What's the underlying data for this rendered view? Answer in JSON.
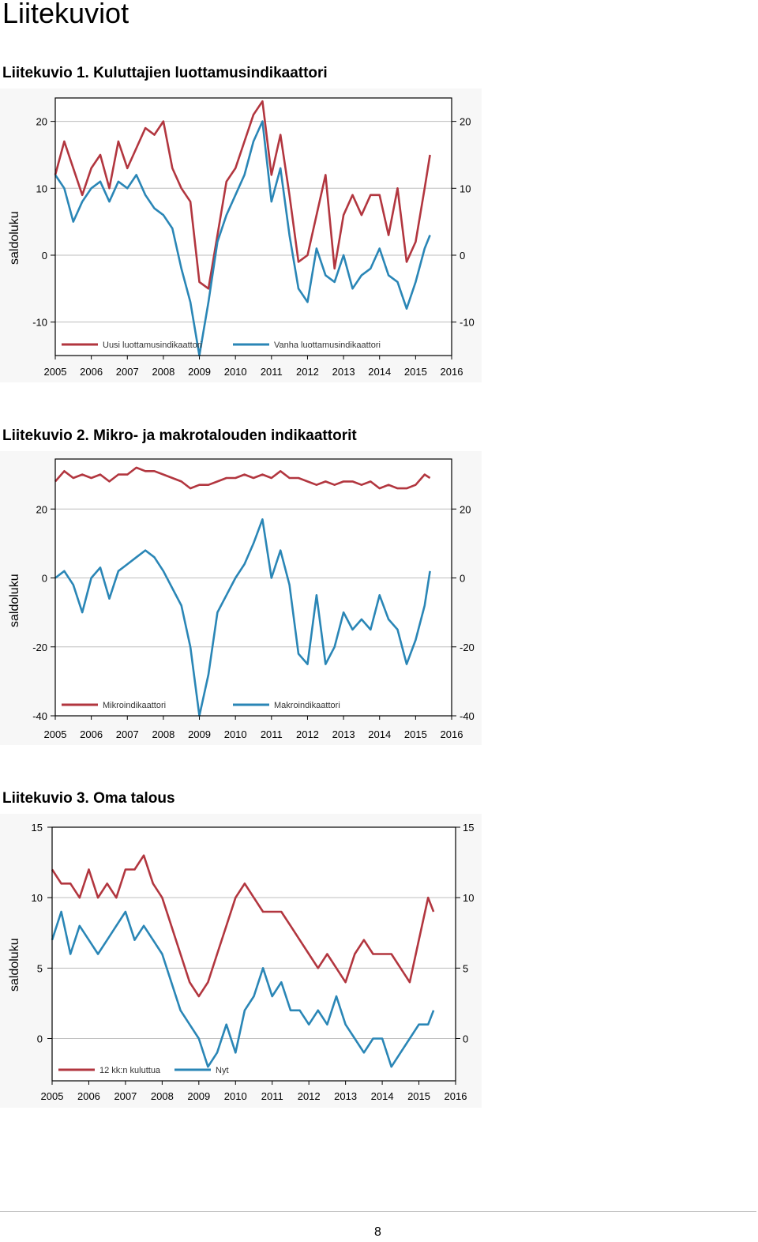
{
  "page": {
    "heading": "Liitekuviot",
    "page_number": "8"
  },
  "colors": {
    "red": "#b2363f",
    "blue": "#2a86b6",
    "frame": "#000000",
    "grid": "#bdbdbd"
  },
  "chart_data": [
    {
      "type": "line",
      "caption": "Liitekuvio 1. Kuluttajien luottamusindikaattori",
      "ylabel": "saldoluku",
      "x_ticks": [
        "2005",
        "2006",
        "2007",
        "2008",
        "2009",
        "2010",
        "2011",
        "2012",
        "2013",
        "2014",
        "2015",
        "2016"
      ],
      "xlim": [
        2005,
        2016
      ],
      "ylim": [
        -15,
        23.5
      ],
      "y_ticks": [
        20,
        10,
        0,
        -10
      ],
      "y_tick_labels": [
        "20",
        "10",
        "0",
        "-10"
      ],
      "grid": true,
      "legend": "bottom-inside",
      "series": [
        {
          "name": "Uusi luottamusindikaattori",
          "color": "#b2363f",
          "x": [
            2005.0,
            2005.25,
            2005.5,
            2005.75,
            2006.0,
            2006.25,
            2006.5,
            2006.75,
            2007.0,
            2007.25,
            2007.5,
            2007.75,
            2008.0,
            2008.25,
            2008.5,
            2008.75,
            2009.0,
            2009.25,
            2009.5,
            2009.75,
            2010.0,
            2010.25,
            2010.5,
            2010.75,
            2011.0,
            2011.25,
            2011.5,
            2011.75,
            2012.0,
            2012.25,
            2012.5,
            2012.75,
            2013.0,
            2013.25,
            2013.5,
            2013.75,
            2014.0,
            2014.25,
            2014.5,
            2014.75,
            2015.0,
            2015.25,
            2015.4
          ],
          "y": [
            12,
            17,
            13,
            9,
            13,
            15,
            10,
            17,
            13,
            16,
            19,
            18,
            20,
            13,
            10,
            8,
            -4,
            -5,
            3,
            11,
            13,
            17,
            21,
            23,
            12,
            18,
            9,
            -1,
            0,
            6,
            12,
            -2,
            6,
            9,
            6,
            9,
            9,
            3,
            10,
            -1,
            2,
            10,
            15
          ]
        },
        {
          "name": "Vanha luottamusindikaattori",
          "color": "#2a86b6",
          "x": [
            2005.0,
            2005.25,
            2005.5,
            2005.75,
            2006.0,
            2006.25,
            2006.5,
            2006.75,
            2007.0,
            2007.25,
            2007.5,
            2007.75,
            2008.0,
            2008.25,
            2008.5,
            2008.75,
            2009.0,
            2009.25,
            2009.5,
            2009.75,
            2010.0,
            2010.25,
            2010.5,
            2010.75,
            2011.0,
            2011.25,
            2011.5,
            2011.75,
            2012.0,
            2012.25,
            2012.5,
            2012.75,
            2013.0,
            2013.25,
            2013.5,
            2013.75,
            2014.0,
            2014.25,
            2014.5,
            2014.75,
            2015.0,
            2015.25,
            2015.4
          ],
          "y": [
            12,
            10,
            5,
            8,
            10,
            11,
            8,
            11,
            10,
            12,
            9,
            7,
            6,
            4,
            -2,
            -7,
            -15,
            -7,
            2,
            6,
            9,
            12,
            17,
            20,
            8,
            13,
            3,
            -5,
            -7,
            1,
            -3,
            -4,
            0,
            -5,
            -3,
            -2,
            1,
            -3,
            -4,
            -8,
            -4,
            1,
            3
          ]
        }
      ]
    },
    {
      "type": "line",
      "caption": "Liitekuvio 2. Mikro- ja makrotalouden indikaattorit",
      "ylabel": "saldoluku",
      "x_ticks": [
        "2005",
        "2006",
        "2007",
        "2008",
        "2009",
        "2010",
        "2011",
        "2012",
        "2013",
        "2014",
        "2015",
        "2016"
      ],
      "xlim": [
        2005,
        2016
      ],
      "ylim": [
        -40,
        34.5
      ],
      "y_ticks": [
        20,
        0,
        -20,
        -40
      ],
      "y_tick_labels": [
        "20",
        "0",
        "-20",
        "-40"
      ],
      "grid": true,
      "legend": "bottom-inside",
      "series": [
        {
          "name": "Mikroindikaattori",
          "color": "#b2363f",
          "x": [
            2005.0,
            2005.25,
            2005.5,
            2005.75,
            2006.0,
            2006.25,
            2006.5,
            2006.75,
            2007.0,
            2007.25,
            2007.5,
            2007.75,
            2008.0,
            2008.25,
            2008.5,
            2008.75,
            2009.0,
            2009.25,
            2009.5,
            2009.75,
            2010.0,
            2010.25,
            2010.5,
            2010.75,
            2011.0,
            2011.25,
            2011.5,
            2011.75,
            2012.0,
            2012.25,
            2012.5,
            2012.75,
            2013.0,
            2013.25,
            2013.5,
            2013.75,
            2014.0,
            2014.25,
            2014.5,
            2014.75,
            2015.0,
            2015.25,
            2015.4
          ],
          "y": [
            28,
            31,
            29,
            30,
            29,
            30,
            28,
            30,
            30,
            32,
            31,
            31,
            30,
            29,
            28,
            26,
            27,
            27,
            28,
            29,
            29,
            30,
            29,
            30,
            29,
            31,
            29,
            29,
            28,
            27,
            28,
            27,
            28,
            28,
            27,
            28,
            26,
            27,
            26,
            26,
            27,
            30,
            29
          ]
        },
        {
          "name": "Makroindikaattori",
          "color": "#2a86b6",
          "x": [
            2005.0,
            2005.25,
            2005.5,
            2005.75,
            2006.0,
            2006.25,
            2006.5,
            2006.75,
            2007.0,
            2007.25,
            2007.5,
            2007.75,
            2008.0,
            2008.25,
            2008.5,
            2008.75,
            2009.0,
            2009.25,
            2009.5,
            2009.75,
            2010.0,
            2010.25,
            2010.5,
            2010.75,
            2011.0,
            2011.25,
            2011.5,
            2011.75,
            2012.0,
            2012.25,
            2012.5,
            2012.75,
            2013.0,
            2013.25,
            2013.5,
            2013.75,
            2014.0,
            2014.25,
            2014.5,
            2014.75,
            2015.0,
            2015.25,
            2015.4
          ],
          "y": [
            0,
            2,
            -2,
            -10,
            0,
            3,
            -6,
            2,
            4,
            6,
            8,
            6,
            2,
            -3,
            -8,
            -20,
            -40,
            -28,
            -10,
            -5,
            0,
            4,
            10,
            17,
            0,
            8,
            -2,
            -22,
            -25,
            -5,
            -25,
            -20,
            -10,
            -15,
            -12,
            -15,
            -5,
            -12,
            -15,
            -25,
            -18,
            -8,
            2
          ]
        }
      ]
    },
    {
      "type": "line",
      "caption": "Liitekuvio 3. Oma talous",
      "ylabel": "saldoluku",
      "x_ticks": [
        "2005",
        "2006",
        "2007",
        "2008",
        "2009",
        "2010",
        "2011",
        "2012",
        "2013",
        "2014",
        "2015",
        "2016"
      ],
      "xlim": [
        2005,
        2016
      ],
      "ylim": [
        -3,
        15
      ],
      "y_ticks": [
        15,
        10,
        5,
        0
      ],
      "y_tick_labels": [
        "15",
        "10",
        "5",
        "0"
      ],
      "grid": true,
      "legend": "bottom-inside",
      "series": [
        {
          "name": "12 kk:n kuluttua",
          "color": "#b2363f",
          "x": [
            2005.0,
            2005.25,
            2005.5,
            2005.75,
            2006.0,
            2006.25,
            2006.5,
            2006.75,
            2007.0,
            2007.25,
            2007.5,
            2007.75,
            2008.0,
            2008.25,
            2008.5,
            2008.75,
            2009.0,
            2009.25,
            2009.5,
            2009.75,
            2010.0,
            2010.25,
            2010.5,
            2010.75,
            2011.0,
            2011.25,
            2011.5,
            2011.75,
            2012.0,
            2012.25,
            2012.5,
            2012.75,
            2013.0,
            2013.25,
            2013.5,
            2013.75,
            2014.0,
            2014.25,
            2014.5,
            2014.75,
            2015.0,
            2015.25,
            2015.4
          ],
          "y": [
            12,
            11,
            11,
            10,
            12,
            10,
            11,
            10,
            12,
            12,
            13,
            11,
            10,
            8,
            6,
            4,
            3,
            4,
            6,
            8,
            10,
            11,
            10,
            9,
            9,
            9,
            8,
            7,
            6,
            5,
            6,
            5,
            4,
            6,
            7,
            6,
            6,
            6,
            5,
            4,
            7,
            10,
            9
          ]
        },
        {
          "name": "Nyt",
          "color": "#2a86b6",
          "x": [
            2005.0,
            2005.25,
            2005.5,
            2005.75,
            2006.0,
            2006.25,
            2006.5,
            2006.75,
            2007.0,
            2007.25,
            2007.5,
            2007.75,
            2008.0,
            2008.25,
            2008.5,
            2008.75,
            2009.0,
            2009.25,
            2009.5,
            2009.75,
            2010.0,
            2010.25,
            2010.5,
            2010.75,
            2011.0,
            2011.25,
            2011.5,
            2011.75,
            2012.0,
            2012.25,
            2012.5,
            2012.75,
            2013.0,
            2013.25,
            2013.5,
            2013.75,
            2014.0,
            2014.25,
            2014.5,
            2014.75,
            2015.0,
            2015.25,
            2015.4
          ],
          "y": [
            7,
            9,
            6,
            8,
            7,
            6,
            7,
            8,
            9,
            7,
            8,
            7,
            6,
            4,
            2,
            1,
            0,
            -2,
            -1,
            1,
            -1,
            2,
            3,
            5,
            3,
            4,
            2,
            2,
            1,
            2,
            1,
            3,
            1,
            0,
            -1,
            0,
            0,
            -2,
            -1,
            0,
            1,
            1,
            2
          ]
        }
      ]
    }
  ]
}
